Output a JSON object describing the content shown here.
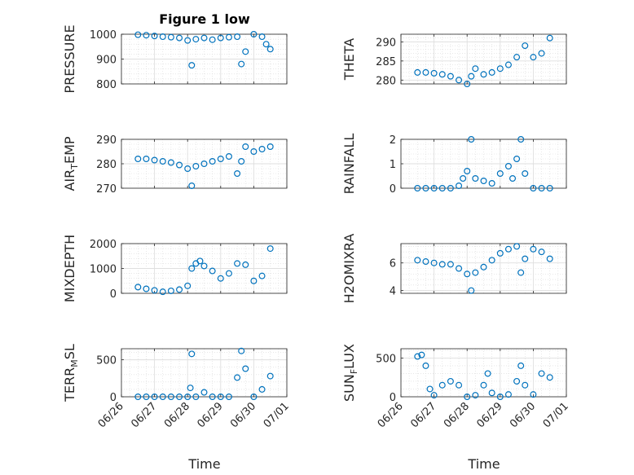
{
  "figure": {
    "title": "Figure 1 low",
    "xlabel": "Time"
  },
  "x_ticks": [
    "06/26",
    "06/27",
    "06/28",
    "06/29",
    "06/30",
    "07/01"
  ],
  "marker_color": "#0072BD",
  "chart_data": [
    {
      "type": "scatter",
      "ylabel": "PRESSURE",
      "ylim": [
        800,
        1000
      ],
      "yticks": [
        "800",
        "900",
        "1000"
      ],
      "grid": true,
      "x": [
        "06/26 12:00",
        "06/26 18:00",
        "06/27 00:00",
        "06/27 06:00",
        "06/27 12:00",
        "06/27 18:00",
        "06/28 00:00",
        "06/28 03:00",
        "06/28 06:00",
        "06/28 12:00",
        "06/28 18:00",
        "06/29 00:00",
        "06/29 06:00",
        "06/29 12:00",
        "06/29 15:00",
        "06/29 18:00",
        "06/30 00:00",
        "06/30 06:00",
        "06/30 09:00",
        "06/30 12:00"
      ],
      "y": [
        998,
        996,
        993,
        990,
        988,
        985,
        975,
        875,
        980,
        985,
        978,
        985,
        988,
        990,
        880,
        930,
        1000,
        990,
        960,
        940
      ]
    },
    {
      "type": "scatter",
      "ylabel": "THETA",
      "ylim": [
        279,
        292
      ],
      "yticks": [
        "280",
        "285",
        "290"
      ],
      "grid": true,
      "x": [
        "06/26 12:00",
        "06/26 18:00",
        "06/27 00:00",
        "06/27 06:00",
        "06/27 12:00",
        "06/27 18:00",
        "06/28 00:00",
        "06/28 03:00",
        "06/28 06:00",
        "06/28 12:00",
        "06/28 18:00",
        "06/29 00:00",
        "06/29 06:00",
        "06/29 12:00",
        "06/29 18:00",
        "06/30 00:00",
        "06/30 06:00",
        "06/30 12:00"
      ],
      "y": [
        282,
        282,
        281.8,
        281.5,
        281,
        280,
        279,
        281,
        283,
        281.5,
        282,
        283,
        284,
        286,
        289,
        286,
        287,
        291
      ]
    },
    {
      "type": "scatter",
      "ylabel": "AIR_TEMP",
      "ylim": [
        270,
        290
      ],
      "yticks": [
        "270",
        "280",
        "290"
      ],
      "grid": true,
      "x": [
        "06/26 12:00",
        "06/26 18:00",
        "06/27 00:00",
        "06/27 06:00",
        "06/27 12:00",
        "06/27 18:00",
        "06/28 00:00",
        "06/28 03:00",
        "06/28 06:00",
        "06/28 12:00",
        "06/28 18:00",
        "06/29 00:00",
        "06/29 06:00",
        "06/29 12:00",
        "06/29 15:00",
        "06/29 18:00",
        "06/30 00:00",
        "06/30 06:00",
        "06/30 12:00"
      ],
      "y": [
        282,
        282,
        281.5,
        281,
        280.5,
        279.5,
        278,
        271,
        279,
        280,
        281,
        282,
        283,
        276,
        281,
        287,
        285,
        286,
        287
      ]
    },
    {
      "type": "scatter",
      "ylabel": "RAINFALL",
      "ylim": [
        0,
        2
      ],
      "yticks": [
        "0",
        "1",
        "2"
      ],
      "grid": true,
      "x": [
        "06/26 12:00",
        "06/26 18:00",
        "06/27 00:00",
        "06/27 06:00",
        "06/27 12:00",
        "06/27 18:00",
        "06/27 21:00",
        "06/28 00:00",
        "06/28 03:00",
        "06/28 06:00",
        "06/28 12:00",
        "06/28 18:00",
        "06/29 00:00",
        "06/29 06:00",
        "06/29 09:00",
        "06/29 12:00",
        "06/29 15:00",
        "06/29 18:00",
        "06/30 00:00",
        "06/30 06:00",
        "06/30 12:00"
      ],
      "y": [
        0,
        0,
        0,
        0,
        0,
        0.1,
        0.4,
        0.7,
        2.0,
        0.4,
        0.3,
        0.2,
        0.6,
        0.9,
        0.4,
        1.2,
        2.0,
        0.6,
        0,
        0,
        0
      ]
    },
    {
      "type": "scatter",
      "ylabel": "MIXDEPTH",
      "ylim": [
        0,
        2000
      ],
      "yticks": [
        "0",
        "1000",
        "2000"
      ],
      "grid": true,
      "x": [
        "06/26 12:00",
        "06/26 18:00",
        "06/27 00:00",
        "06/27 06:00",
        "06/27 12:00",
        "06/27 18:00",
        "06/28 00:00",
        "06/28 03:00",
        "06/28 06:00",
        "06/28 09:00",
        "06/28 12:00",
        "06/28 18:00",
        "06/29 00:00",
        "06/29 06:00",
        "06/29 12:00",
        "06/29 18:00",
        "06/30 00:00",
        "06/30 06:00",
        "06/30 12:00"
      ],
      "y": [
        250,
        180,
        120,
        60,
        100,
        150,
        300,
        1000,
        1200,
        1300,
        1100,
        900,
        600,
        800,
        1200,
        1150,
        500,
        700,
        1800
      ]
    },
    {
      "type": "scatter",
      "ylabel": "H2OMIXRA",
      "ylim": [
        3.8,
        7.4
      ],
      "yticks": [
        "4",
        "6"
      ],
      "grid": true,
      "x": [
        "06/26 12:00",
        "06/26 18:00",
        "06/27 00:00",
        "06/27 06:00",
        "06/27 12:00",
        "06/27 18:00",
        "06/28 00:00",
        "06/28 03:00",
        "06/28 06:00",
        "06/28 12:00",
        "06/28 18:00",
        "06/29 00:00",
        "06/29 06:00",
        "06/29 12:00",
        "06/29 15:00",
        "06/29 18:00",
        "06/30 00:00",
        "06/30 06:00",
        "06/30 12:00"
      ],
      "y": [
        6.2,
        6.1,
        6.0,
        5.9,
        5.9,
        5.6,
        5.2,
        4.0,
        5.3,
        5.7,
        6.2,
        6.7,
        7.0,
        7.2,
        5.3,
        6.3,
        7.0,
        6.8,
        6.3
      ]
    },
    {
      "type": "scatter",
      "ylabel": "TERR_MSL",
      "ylim": [
        0,
        650
      ],
      "yticks": [
        "0",
        "500"
      ],
      "grid": true,
      "x": [
        "06/26 12:00",
        "06/26 18:00",
        "06/27 00:00",
        "06/27 06:00",
        "06/27 12:00",
        "06/27 18:00",
        "06/28 00:00",
        "06/28 02:00",
        "06/28 03:00",
        "06/28 06:00",
        "06/28 12:00",
        "06/28 18:00",
        "06/29 00:00",
        "06/29 06:00",
        "06/29 12:00",
        "06/29 15:00",
        "06/29 18:00",
        "06/30 00:00",
        "06/30 06:00",
        "06/30 12:00"
      ],
      "y": [
        0,
        0,
        0,
        0,
        0,
        0,
        0,
        120,
        580,
        0,
        60,
        0,
        0,
        0,
        260,
        620,
        380,
        0,
        100,
        280
      ]
    },
    {
      "type": "scatter",
      "ylabel": "SUN_FLUX",
      "ylim": [
        0,
        620
      ],
      "yticks": [
        "0",
        "500"
      ],
      "grid": true,
      "x": [
        "06/26 12:00",
        "06/26 15:00",
        "06/26 18:00",
        "06/26 21:00",
        "06/27 00:00",
        "06/27 06:00",
        "06/27 12:00",
        "06/27 18:00",
        "06/28 00:00",
        "06/28 06:00",
        "06/28 12:00",
        "06/28 15:00",
        "06/28 18:00",
        "06/29 00:00",
        "06/29 06:00",
        "06/29 12:00",
        "06/29 15:00",
        "06/29 18:00",
        "06/30 00:00",
        "06/30 06:00",
        "06/30 12:00"
      ],
      "y": [
        520,
        540,
        400,
        100,
        20,
        150,
        200,
        150,
        0,
        20,
        150,
        300,
        50,
        0,
        30,
        200,
        400,
        150,
        30,
        300,
        250
      ]
    }
  ]
}
